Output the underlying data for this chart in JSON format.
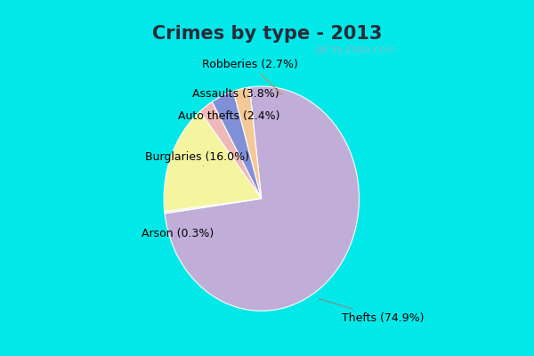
{
  "title": "Crimes by type - 2013",
  "slices": [
    {
      "label": "Thefts",
      "pct": 74.9,
      "color": "#c0aed8"
    },
    {
      "label": "Arson",
      "pct": 0.3,
      "color": "#e8eedd"
    },
    {
      "label": "Burglaries",
      "pct": 16.0,
      "color": "#f5f5a0"
    },
    {
      "label": "Auto thefts",
      "pct": 2.4,
      "color": "#f0b8b8"
    },
    {
      "label": "Assaults",
      "pct": 3.8,
      "color": "#8090d8"
    },
    {
      "label": "Robberies",
      "pct": 2.7,
      "color": "#f5c898"
    }
  ],
  "bg_outer": "#00e8e8",
  "bg_inner_color": "#d0e8e0",
  "title_color": "#2a2a3a",
  "title_fontsize": 15,
  "label_fontsize": 9,
  "watermark": "@City-Data.com",
  "watermark_color": "#90b8c8"
}
